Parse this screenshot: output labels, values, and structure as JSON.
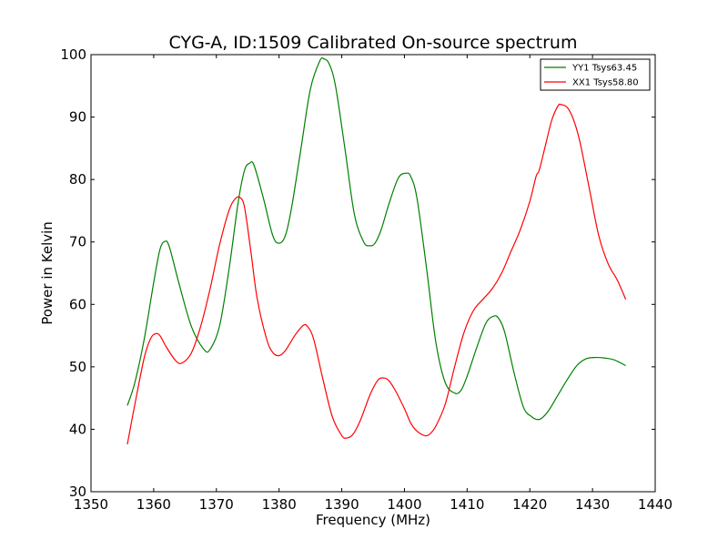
{
  "chart_data": {
    "type": "line",
    "title": "CYG-A, ID:1509 Calibrated On-source spectrum",
    "xlabel": "Frequency (MHz)",
    "ylabel": "Power in Kelvin",
    "xlim": [
      1350,
      1440
    ],
    "ylim": [
      30,
      100
    ],
    "xticks": [
      1350,
      1360,
      1370,
      1380,
      1390,
      1400,
      1410,
      1420,
      1430,
      1440
    ],
    "yticks": [
      30,
      40,
      50,
      60,
      70,
      80,
      90,
      100
    ],
    "grid": false,
    "legend_position": "top-right",
    "series": [
      {
        "name": "YY1 Tsys63.45",
        "color": "#008000",
        "x": [
          1355.8,
          1357,
          1358.5,
          1360,
          1361,
          1361.8,
          1362.5,
          1364,
          1366,
          1368,
          1369,
          1370.5,
          1372,
          1373.5,
          1374.5,
          1375.3,
          1376,
          1377.5,
          1379,
          1380,
          1381,
          1382,
          1383.5,
          1385,
          1386.5,
          1387.2,
          1388,
          1389,
          1390.5,
          1392,
          1393.5,
          1394.5,
          1395.3,
          1396.3,
          1397.5,
          1399,
          1400.2,
          1401,
          1402,
          1403.5,
          1405,
          1406.5,
          1408,
          1409,
          1410,
          1411.5,
          1413,
          1414.2,
          1415,
          1416,
          1417.5,
          1419,
          1420.3,
          1421,
          1421.8,
          1423,
          1424.5,
          1426,
          1427.5,
          1429,
          1430.5,
          1432,
          1433.5,
          1435.3
        ],
        "y": [
          43.8,
          47.5,
          54.5,
          63.5,
          68.8,
          70.1,
          69.2,
          63.5,
          56.5,
          52.8,
          52.8,
          56.5,
          65.5,
          76.5,
          81.5,
          82.6,
          82.3,
          77,
          71,
          69.8,
          71,
          75.5,
          85,
          94.5,
          99,
          99.3,
          98.5,
          95,
          85,
          74.5,
          70,
          69.4,
          69.8,
          72,
          76,
          80.2,
          81,
          80.5,
          77,
          66,
          54,
          47.5,
          45.8,
          46.2,
          48.5,
          53,
          57,
          58.1,
          57.8,
          55.5,
          49,
          43.5,
          42,
          41.6,
          41.7,
          43,
          45.5,
          48,
          50.2,
          51.3,
          51.5,
          51.4,
          51.1,
          50.2
        ]
      },
      {
        "name": "XX1 Tsys58.80",
        "color": "#ff0000",
        "x": [
          1355.8,
          1357,
          1358.5,
          1359.5,
          1360.3,
          1361,
          1362,
          1363.5,
          1364.5,
          1366,
          1367.5,
          1369,
          1370.5,
          1372,
          1373,
          1373.8,
          1374.5,
          1375.5,
          1376.5,
          1378,
          1379,
          1380,
          1381,
          1382.5,
          1383.8,
          1384.5,
          1385.5,
          1387,
          1388.5,
          1390,
          1390.8,
          1391.8,
          1393,
          1394.5,
          1395.8,
          1396.8,
          1397.5,
          1398.5,
          1400,
          1401,
          1402,
          1403.2,
          1404,
          1405,
          1406.5,
          1408,
          1409.5,
          1411,
          1412.5,
          1414,
          1415.5,
          1417,
          1418.5,
          1420,
          1421,
          1421.5,
          1422.5,
          1423.5,
          1424.5,
          1425,
          1426,
          1427,
          1428,
          1429.5,
          1431,
          1432.5,
          1434,
          1435.3
        ],
        "y": [
          37.6,
          44,
          51.5,
          54.5,
          55.3,
          55,
          53.2,
          51,
          50.6,
          52.2,
          56.5,
          62.5,
          69.5,
          75,
          76.9,
          77.1,
          75.5,
          68.5,
          61,
          54.5,
          52.3,
          51.8,
          52.6,
          55,
          56.6,
          56.5,
          54.5,
          48,
          42,
          39,
          38.6,
          39.2,
          41.5,
          45.5,
          47.9,
          48.2,
          47.8,
          46.3,
          43.3,
          41,
          39.7,
          39,
          39.2,
          40.5,
          44,
          50,
          55.5,
          59,
          60.8,
          62.5,
          65,
          68.5,
          72,
          76.5,
          80.5,
          81.5,
          85.5,
          89.5,
          91.8,
          92,
          91.5,
          89.5,
          86,
          78.5,
          71,
          66.5,
          63.8,
          60.8
        ]
      }
    ]
  }
}
